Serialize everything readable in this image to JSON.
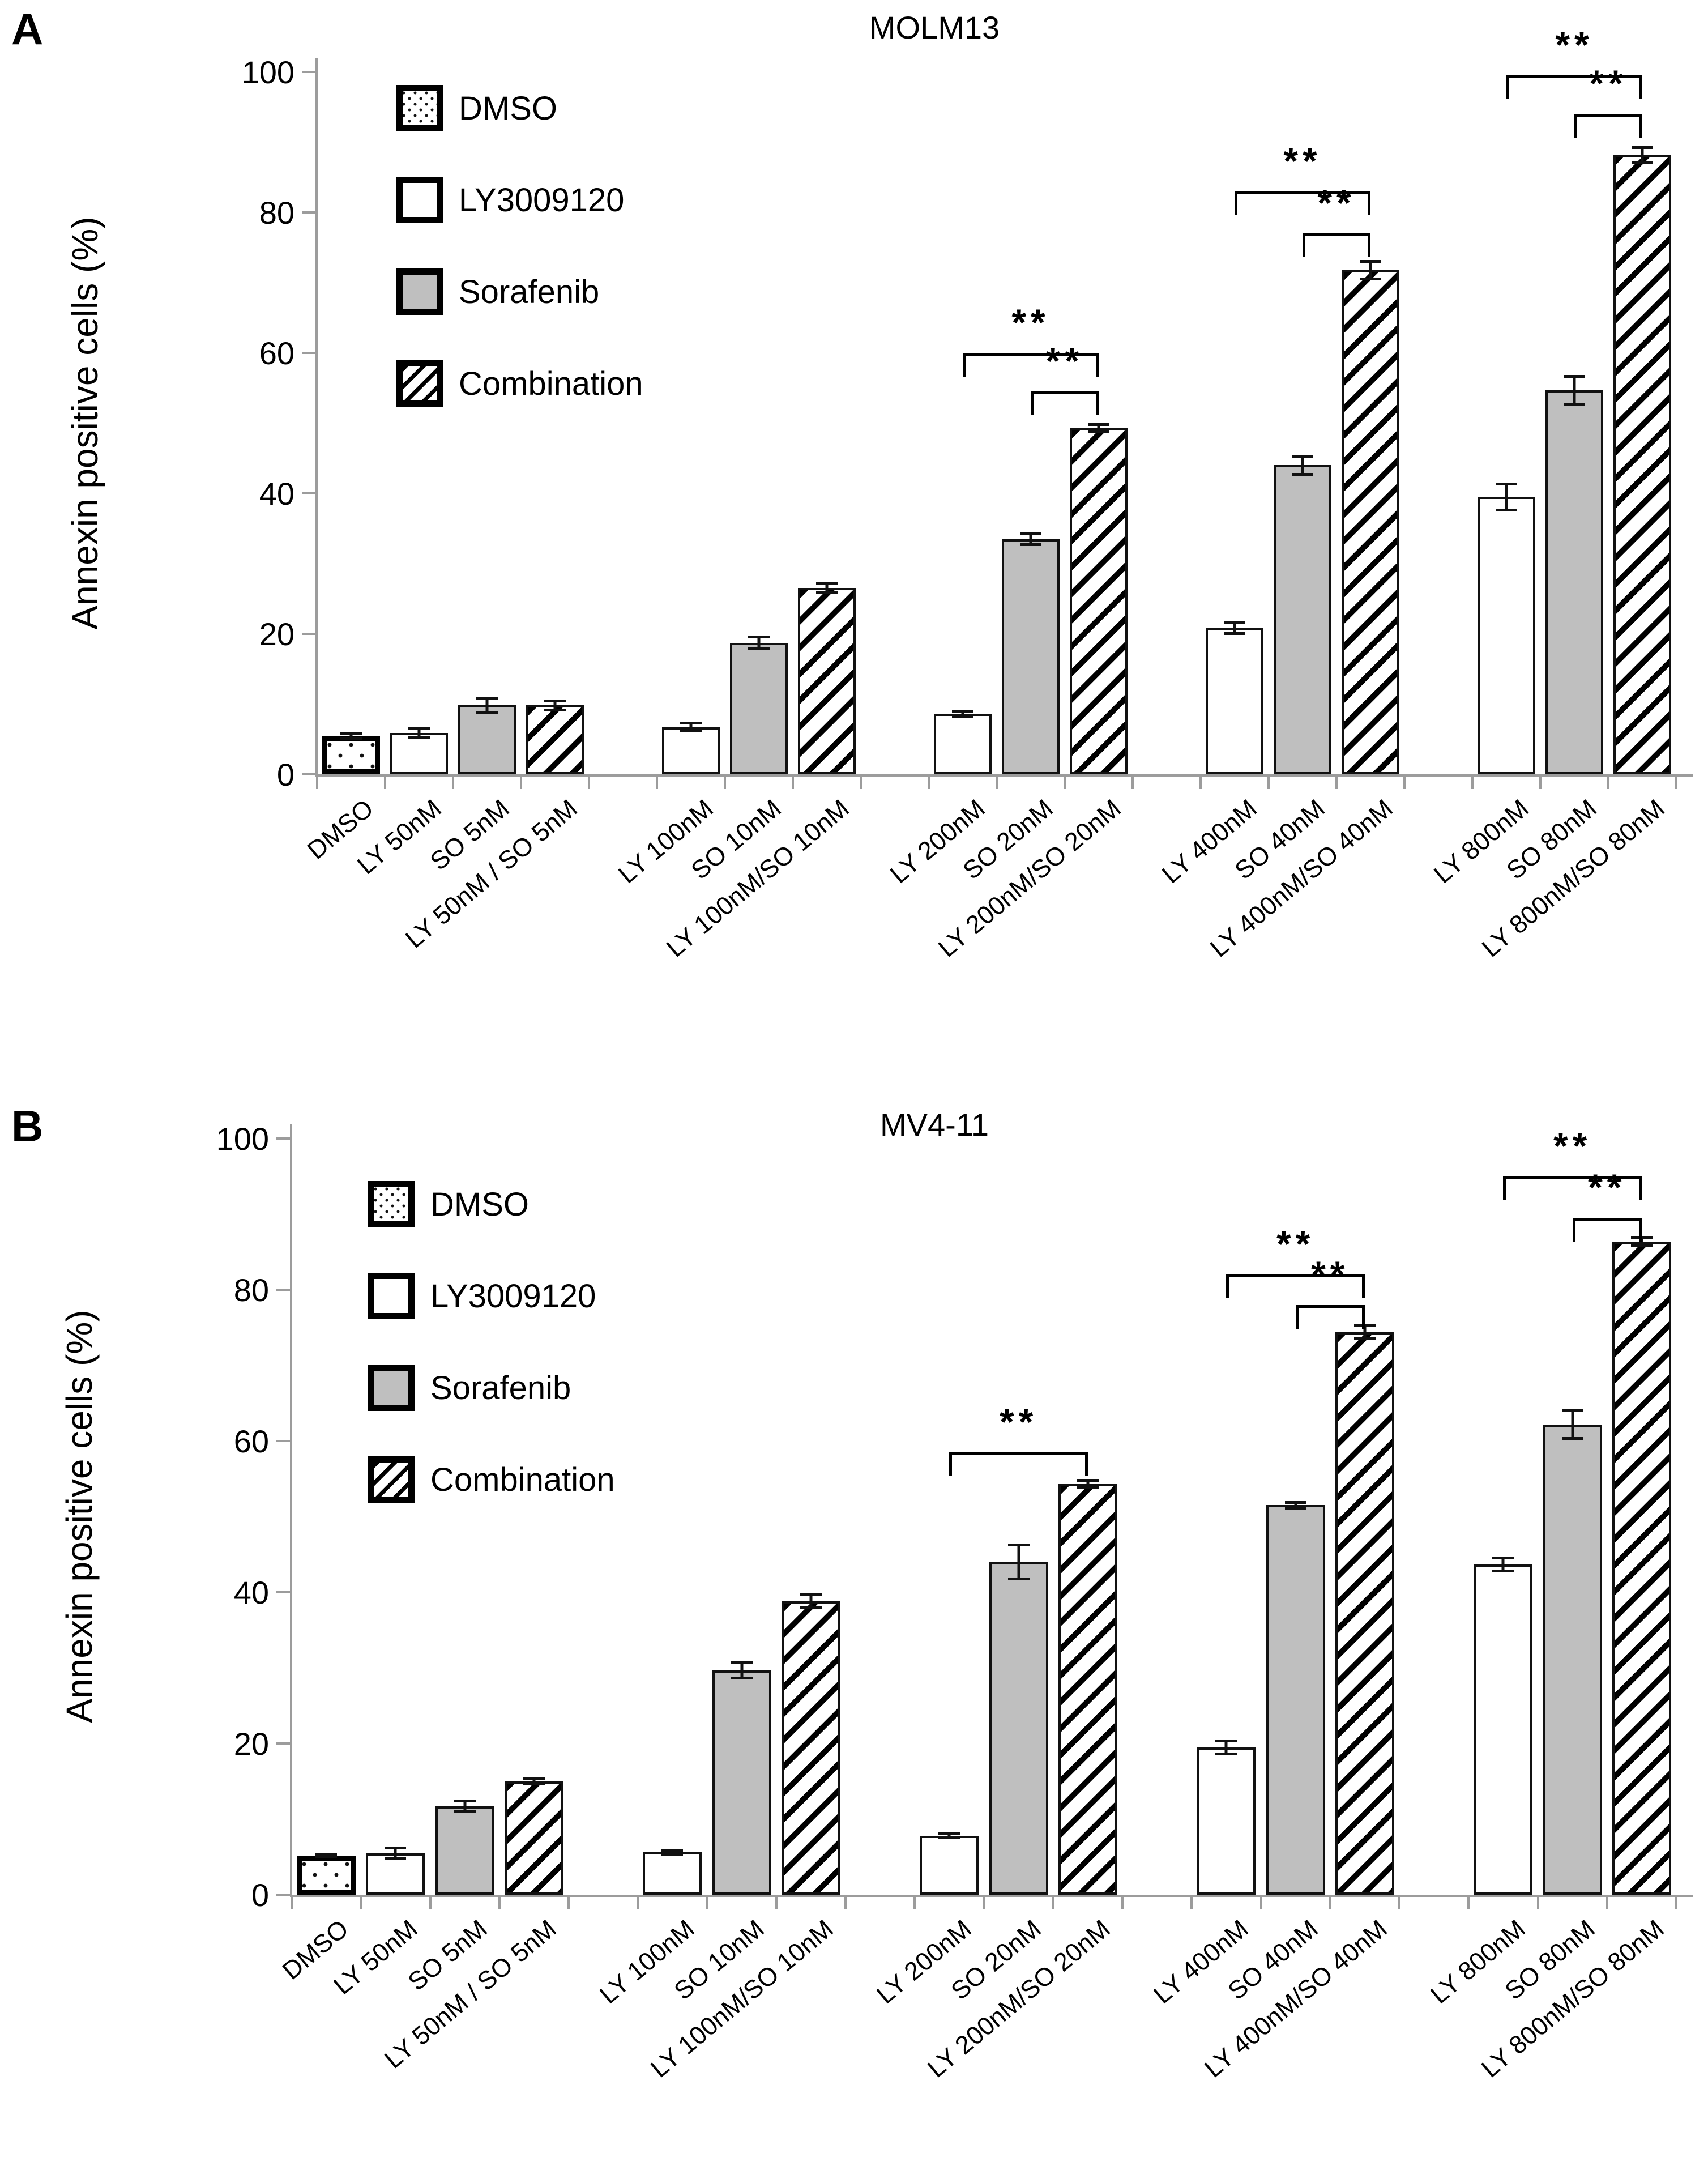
{
  "colors": {
    "bar_gray": "#bfbfbf",
    "axis_gray": "#9c9c9c",
    "ink": "#000000"
  },
  "legend": {
    "items": [
      {
        "label": "DMSO",
        "pattern": "dots"
      },
      {
        "label": "LY3009120",
        "pattern": "white"
      },
      {
        "label": "Sorafenib",
        "pattern": "gray"
      },
      {
        "label": "Combination",
        "pattern": "hatch"
      }
    ]
  },
  "chart_data": [
    {
      "type": "bar",
      "panel_label": "A",
      "title": "MOLM13",
      "ylabel": "Annexin positive cells (%)",
      "ylim": [
        0,
        100
      ],
      "yticks": [
        0,
        20,
        40,
        60,
        80,
        100
      ],
      "grid": false,
      "legend_position": "upper-left",
      "categories": [
        "DMSO",
        "LY 50nM",
        "SO 5nM",
        "LY 50nM / SO 5nM",
        "LY 100nM",
        "SO 10nM",
        "LY 100nM/SO 10nM",
        "LY 200nM",
        "SO 20nM",
        "LY 200nM/SO 20nM",
        "LY 400nM",
        "SO 40nM",
        "LY 400nM/SO 40nM",
        "LY 800nM",
        "SO 80nM",
        "LY 800nM/SO 80nM"
      ],
      "groups": [
        [
          0,
          1,
          2,
          3
        ],
        [
          4,
          5,
          6
        ],
        [
          7,
          8,
          9
        ],
        [
          10,
          11,
          12
        ],
        [
          13,
          14,
          15
        ]
      ],
      "bar_patterns": [
        0,
        1,
        2,
        3,
        1,
        2,
        3,
        1,
        2,
        3,
        1,
        2,
        3,
        1,
        2,
        3
      ],
      "values": [
        5.4,
        5.9,
        9.8,
        9.8,
        6.7,
        18.7,
        26.5,
        8.6,
        33.5,
        49.3,
        20.8,
        44.0,
        71.8,
        39.5,
        54.7,
        88.2
      ],
      "errors": [
        0.4,
        0.7,
        1.0,
        0.7,
        0.6,
        0.9,
        0.7,
        0.4,
        0.8,
        0.5,
        0.8,
        1.3,
        1.3,
        1.9,
        2.0,
        1.1
      ],
      "brackets": [
        {
          "from": 7,
          "to": 9,
          "y": 60.0,
          "label": "**"
        },
        {
          "from": 8,
          "to": 9,
          "y": 54.5,
          "label": "**"
        },
        {
          "from": 10,
          "to": 12,
          "y": 83.0,
          "label": "**"
        },
        {
          "from": 11,
          "to": 12,
          "y": 77.0,
          "label": "**"
        },
        {
          "from": 13,
          "to": 15,
          "y": 99.5,
          "label": "**"
        },
        {
          "from": 14,
          "to": 15,
          "y": 94.0,
          "label": "**"
        }
      ]
    },
    {
      "type": "bar",
      "panel_label": "B",
      "title": "MV4-11",
      "ylabel": "Annexin positive cells (%)",
      "ylim": [
        0,
        100
      ],
      "yticks": [
        0,
        20,
        40,
        60,
        80,
        100
      ],
      "grid": false,
      "legend_position": "upper-left",
      "categories": [
        "DMSO",
        "LY 50nM",
        "SO 5nM",
        "LY 50nM / SO 5nM",
        "LY 100nM",
        "SO 10nM",
        "LY 100nM/SO 10nM",
        "LY 200nM",
        "SO 20nM",
        "LY 200nM/SO 20nM",
        "LY 400nM",
        "SO 40nM",
        "LY 400nM/SO 40nM",
        "LY 800nM",
        "SO 80nM",
        "LY 800nM/SO 80nM"
      ],
      "groups": [
        [
          0,
          1,
          2,
          3
        ],
        [
          4,
          5,
          6
        ],
        [
          7,
          8,
          9
        ],
        [
          10,
          11,
          12
        ],
        [
          13,
          14,
          15
        ]
      ],
      "bar_patterns": [
        0,
        1,
        2,
        3,
        1,
        2,
        3,
        1,
        2,
        3,
        1,
        2,
        3,
        1,
        2,
        3
      ],
      "values": [
        5.2,
        5.5,
        11.7,
        15.0,
        5.6,
        29.7,
        38.8,
        7.8,
        44.0,
        54.3,
        19.5,
        51.5,
        74.4,
        43.7,
        62.2,
        86.4
      ],
      "errors": [
        0.2,
        0.7,
        0.7,
        0.4,
        0.3,
        1.1,
        0.9,
        0.3,
        2.3,
        0.5,
        0.9,
        0.4,
        0.9,
        0.9,
        1.9,
        0.6
      ],
      "brackets": [
        {
          "from": 7,
          "to": 9,
          "y": 58.5,
          "label": "**"
        },
        {
          "from": 10,
          "to": 12,
          "y": 82.0,
          "label": "**"
        },
        {
          "from": 11,
          "to": 12,
          "y": 78.0,
          "label": "**"
        },
        {
          "from": 13,
          "to": 15,
          "y": 95.0,
          "label": "**"
        },
        {
          "from": 14,
          "to": 15,
          "y": 89.5,
          "label": "**"
        }
      ]
    }
  ]
}
